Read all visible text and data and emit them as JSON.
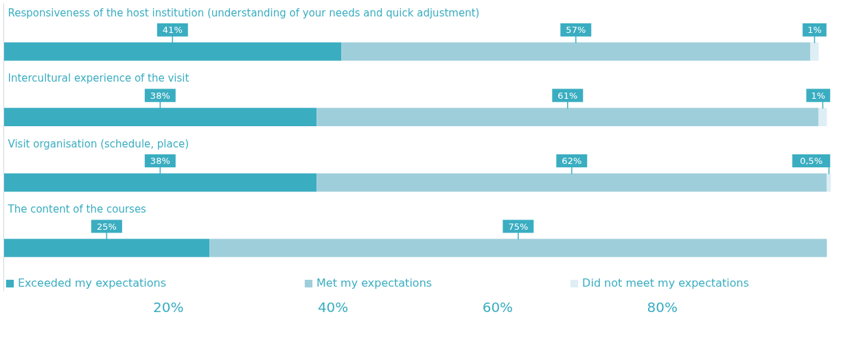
{
  "chart_data": {
    "type": "bar",
    "orientation": "horizontal",
    "stacked": true,
    "categories": [
      "Responsiveness of the host institution (understanding of your needs and quick adjustment)",
      "Intercultural experience of the visit",
      "Visit organisation (schedule, place)",
      "The content of the courses"
    ],
    "series": [
      {
        "name": "Exceeded my expectations",
        "color": "#3aadc1",
        "values": [
          41,
          38,
          38,
          25
        ],
        "value_labels": [
          "41%",
          "38%",
          "38%",
          "25%"
        ]
      },
      {
        "name": "Met my expectations",
        "color": "#9fcedb",
        "values": [
          57,
          61,
          62,
          75
        ],
        "value_labels": [
          "57%",
          "61%",
          "62%",
          "75%"
        ]
      },
      {
        "name": "Did not meet my expectations",
        "color": "#deeef5",
        "values": [
          1,
          1,
          0.5,
          null
        ],
        "value_labels": [
          "1%",
          "1%",
          "0,5%",
          null
        ]
      }
    ],
    "xlim": [
      0,
      100.5
    ],
    "xticks": [
      {
        "value": 20,
        "label": "20%"
      },
      {
        "value": 40,
        "label": "40%"
      },
      {
        "value": 60,
        "label": "60%"
      },
      {
        "value": 80,
        "label": "80%"
      }
    ],
    "grid": false,
    "legend": "bottom",
    "tick_labels": "x"
  }
}
